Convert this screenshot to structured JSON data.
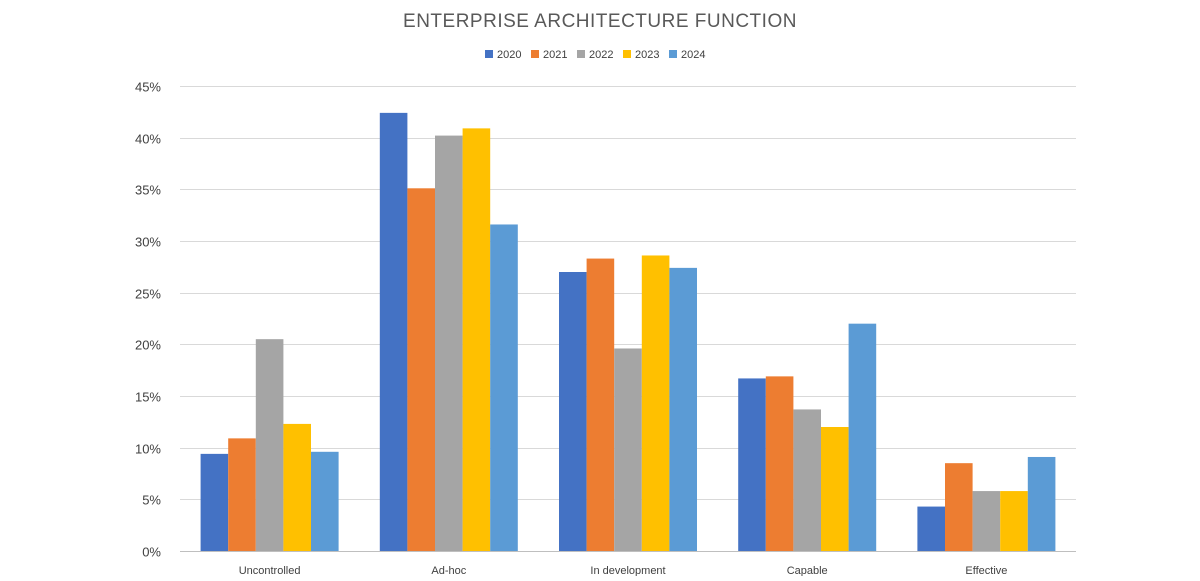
{
  "chart_data": {
    "type": "bar",
    "title": "ENTERPRISE ARCHITECTURE FUNCTION",
    "categories": [
      "Uncontrolled",
      "Ad-hoc",
      "In development",
      "Capable",
      "Effective"
    ],
    "series": [
      {
        "name": "2020",
        "color": "#4472C4",
        "values": [
          9.4,
          42.4,
          27.0,
          16.7,
          4.3
        ]
      },
      {
        "name": "2021",
        "color": "#ED7D31",
        "values": [
          10.9,
          35.1,
          28.3,
          16.9,
          8.5
        ]
      },
      {
        "name": "2022",
        "color": "#A5A5A5",
        "values": [
          20.5,
          40.2,
          19.6,
          13.7,
          5.8
        ]
      },
      {
        "name": "2023",
        "color": "#FFC000",
        "values": [
          12.3,
          40.9,
          28.6,
          12.0,
          5.8
        ]
      },
      {
        "name": "2024",
        "color": "#5B9BD5",
        "values": [
          9.6,
          31.6,
          27.4,
          22.0,
          9.1
        ]
      }
    ],
    "ylim": [
      0,
      45
    ],
    "yticks": [
      0,
      5,
      10,
      15,
      20,
      25,
      30,
      35,
      40,
      45
    ],
    "ytick_labels": [
      "0%",
      "5%",
      "10%",
      "15%",
      "20%",
      "25%",
      "30%",
      "35%",
      "40%",
      "45%"
    ],
    "xlabel": "",
    "ylabel": "",
    "legend_position": "top",
    "grid": true
  }
}
